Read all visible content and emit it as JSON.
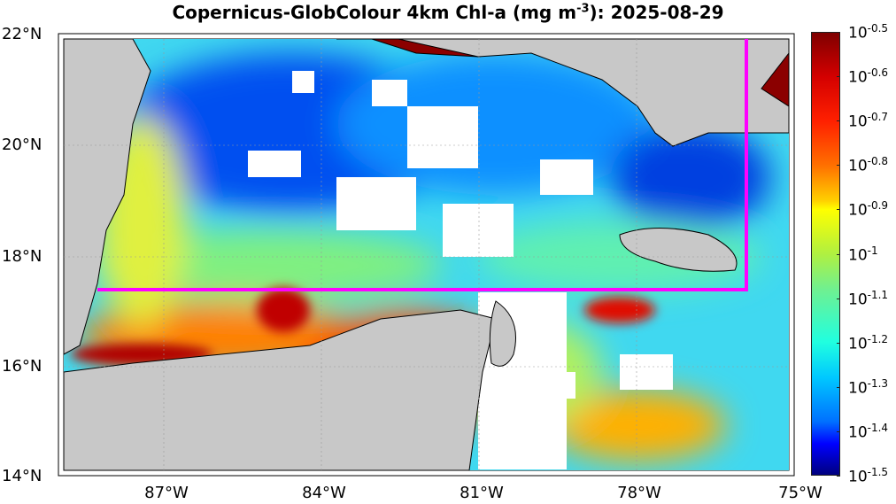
{
  "title": {
    "text": "Copernicus-GlobColour 4km Chl-a (mg m",
    "sup": "-3",
    "suffix": "): 2025-08-29"
  },
  "axes": {
    "lat_labels": [
      "22°N",
      "20°N",
      "18°N",
      "16°N",
      "14°N"
    ],
    "lon_labels": [
      "87°W",
      "84°W",
      "81°W",
      "78°W",
      "75°W"
    ],
    "lat_range": [
      14,
      22
    ],
    "lon_range": [
      -89,
      -75
    ]
  },
  "colorbar": {
    "base": "10",
    "exponents": [
      "-0.5",
      "-0.6",
      "-0.7",
      "-0.8",
      "-0.9",
      "-1",
      "-1.1",
      "-1.2",
      "-1.3",
      "-1.4",
      "-1.5"
    ]
  },
  "colors": {
    "box_line": "#ff00ff",
    "land": "#c8c8c8",
    "no_data": "#ffffff"
  }
}
